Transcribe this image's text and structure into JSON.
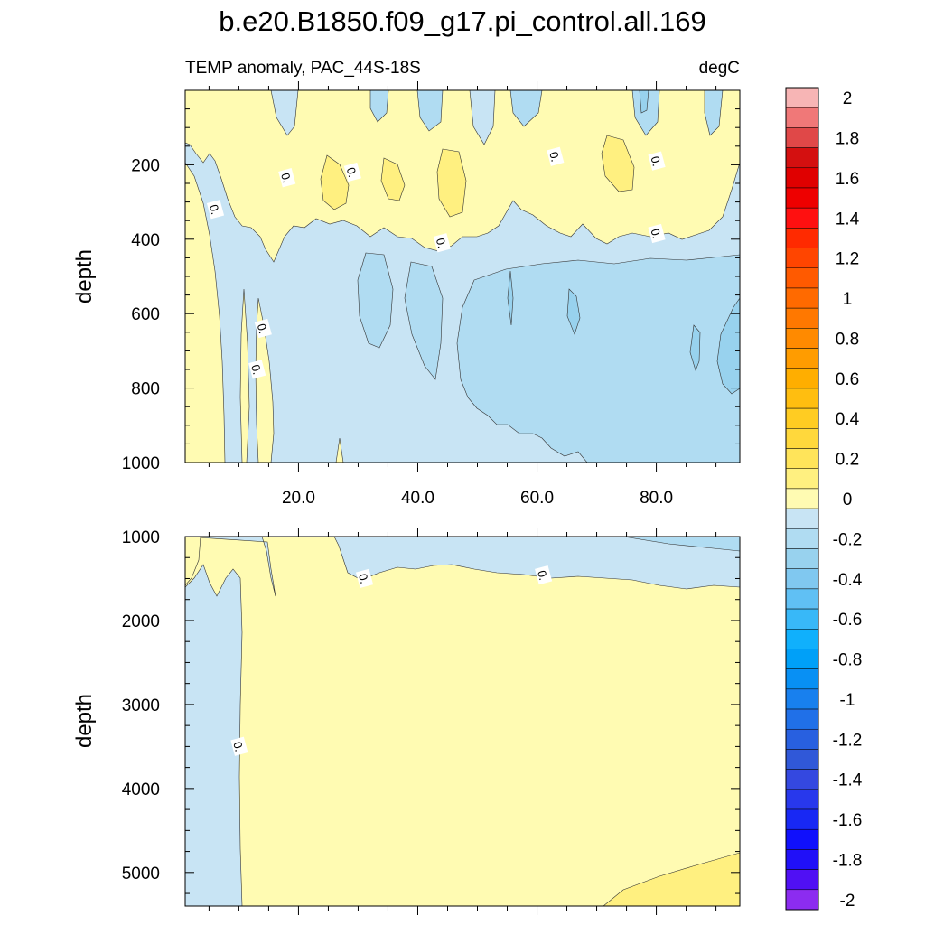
{
  "title": "b.e20.B1850.f09_g17.pi_control.all.169",
  "subtitle_left": "TEMP anomaly, PAC_44S-18S",
  "subtitle_right": "degC",
  "chart_data": [
    {
      "type": "contour",
      "panel": "upper",
      "xlim": [
        1,
        94
      ],
      "ylim": [
        1000,
        0
      ],
      "ylabel": "depth",
      "x_ticks": [
        20,
        40,
        60,
        80
      ],
      "x_tick_labels": [
        "20.0",
        "40.0",
        "60.0",
        "80.0"
      ],
      "y_ticks": [
        200,
        400,
        600,
        800,
        1000
      ],
      "y_tick_labels": [
        "200",
        "400",
        "600",
        "800",
        "1000"
      ],
      "contour_labels": [
        {
          "text": "0.",
          "x": 6,
          "y": 320
        },
        {
          "text": "0.",
          "x": 18,
          "y": 235
        },
        {
          "text": "0.",
          "x": 29,
          "y": 220
        },
        {
          "text": "0.",
          "x": 44,
          "y": 410
        },
        {
          "text": "0.",
          "x": 63,
          "y": 178
        },
        {
          "text": "0.",
          "x": 80,
          "y": 190
        },
        {
          "text": "0.",
          "x": 80,
          "y": 385
        },
        {
          "text": "0.",
          "x": 14,
          "y": 640
        },
        {
          "text": "0.",
          "x": 13,
          "y": 750
        }
      ]
    },
    {
      "type": "contour",
      "panel": "lower",
      "xlim": [
        1,
        94
      ],
      "ylim": [
        5400,
        1000
      ],
      "ylabel": "depth",
      "y_ticks": [
        1000,
        2000,
        3000,
        4000,
        5000
      ],
      "y_tick_labels": [
        "1000",
        "2000",
        "3000",
        "4000",
        "5000"
      ],
      "contour_labels": [
        {
          "text": "0.",
          "x": 31,
          "y": 1500
        },
        {
          "text": "0.",
          "x": 61,
          "y": 1460
        },
        {
          "text": "0.",
          "x": 10,
          "y": 3500
        }
      ]
    }
  ],
  "colorbar": {
    "levels": [
      {
        "label": "2",
        "color": "#f7b5b5"
      },
      {
        "label": "",
        "color": "#f07878"
      },
      {
        "label": "1.8",
        "color": "#e04848"
      },
      {
        "label": "",
        "color": "#d41010"
      },
      {
        "label": "1.6",
        "color": "#e00000"
      },
      {
        "label": "",
        "color": "#ee0000"
      },
      {
        "label": "1.4",
        "color": "#ff1010"
      },
      {
        "label": "",
        "color": "#ff2a00"
      },
      {
        "label": "1.2",
        "color": "#ff4500"
      },
      {
        "label": "",
        "color": "#ff5a00"
      },
      {
        "label": "1",
        "color": "#ff6a00"
      },
      {
        "label": "",
        "color": "#ff7800"
      },
      {
        "label": "0.8",
        "color": "#ff8a00"
      },
      {
        "label": "",
        "color": "#ff9c00"
      },
      {
        "label": "0.6",
        "color": "#ffae00"
      },
      {
        "label": "",
        "color": "#ffbe10"
      },
      {
        "label": "0.4",
        "color": "#ffcc22"
      },
      {
        "label": "",
        "color": "#ffd83c"
      },
      {
        "label": "0.2",
        "color": "#ffe45a"
      },
      {
        "label": "",
        "color": "#fff080"
      },
      {
        "label": "0",
        "color": "#fffbb2"
      },
      {
        "label": "",
        "color": "#c8e4f4"
      },
      {
        "label": "-0.2",
        "color": "#b0dcf2"
      },
      {
        "label": "",
        "color": "#98d2ee"
      },
      {
        "label": "-0.4",
        "color": "#80c8f0"
      },
      {
        "label": "",
        "color": "#60c0f4"
      },
      {
        "label": "-0.6",
        "color": "#38b8f8"
      },
      {
        "label": "",
        "color": "#10b0fc"
      },
      {
        "label": "-0.8",
        "color": "#00a0f8"
      },
      {
        "label": "",
        "color": "#0890f4"
      },
      {
        "label": "-1",
        "color": "#1880ee"
      },
      {
        "label": "",
        "color": "#2070e8"
      },
      {
        "label": "-1.2",
        "color": "#2860e0"
      },
      {
        "label": "",
        "color": "#3058d8"
      },
      {
        "label": "-1.4",
        "color": "#3448e0"
      },
      {
        "label": "",
        "color": "#2838ec"
      },
      {
        "label": "-1.6",
        "color": "#1828f4"
      },
      {
        "label": "",
        "color": "#1010fc"
      },
      {
        "label": "-1.8",
        "color": "#2010f8"
      },
      {
        "label": "",
        "color": "#5010f4"
      },
      {
        "label": "-2",
        "color": "#8c2cf0"
      }
    ]
  },
  "colors": {
    "zero_pos": "#fffbb2",
    "pos_02": "#fff080",
    "neg_0": "#c8e4f4",
    "neg_02": "#b0dcf2",
    "neg_04": "#98d2ee"
  }
}
